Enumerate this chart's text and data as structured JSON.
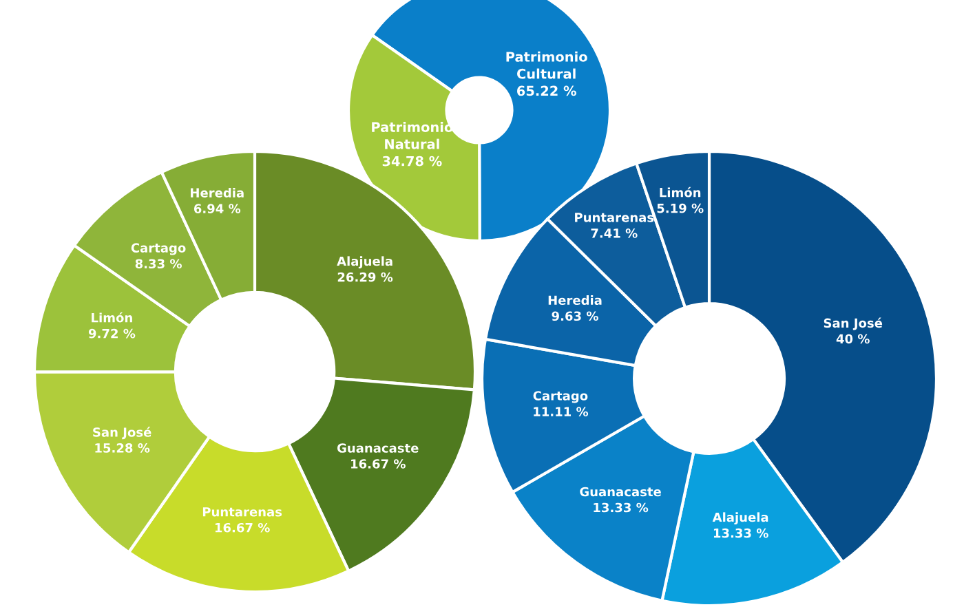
{
  "chart_data": [
    {
      "type": "donut",
      "categories": [
        "Patrimonio Cultural",
        "Patrimonio Natural"
      ],
      "values": [
        65.22,
        34.78
      ],
      "colors": [
        "#0a7fc9",
        "#a3c93a"
      ],
      "value_labels": [
        "65.22 %",
        "34.78 %"
      ]
    },
    {
      "type": "donut",
      "categories": [
        "Alajuela",
        "Guanacaste",
        "Puntarenas",
        "San José",
        "Limón",
        "Cartago",
        "Heredia"
      ],
      "values": [
        26.29,
        16.67,
        16.67,
        15.28,
        9.72,
        8.33,
        6.94
      ],
      "colors": [
        "#6a8c26",
        "#4f7a1f",
        "#c8dc2a",
        "#b0cd3b",
        "#9cc23b",
        "#8fb53a",
        "#86ad36"
      ],
      "value_labels": [
        "26.29 %",
        "16.67 %",
        "16.67 %",
        "15.28 %",
        "9.72 %",
        "8.33 %",
        "6.94 %"
      ]
    },
    {
      "type": "donut",
      "categories": [
        "San José",
        "Alajuela",
        "Guanacaste",
        "Cartago",
        "Heredia",
        "Puntarenas",
        "Limón"
      ],
      "values": [
        40,
        13.33,
        13.33,
        11.11,
        9.63,
        7.41,
        5.19
      ],
      "colors": [
        "#064e8a",
        "#0aa0de",
        "#0a82c8",
        "#0a6fb5",
        "#0b64a8",
        "#0d5d9c",
        "#0b5592"
      ],
      "value_labels": [
        "40 %",
        "13.33 %",
        "13.33 %",
        "11.11 %",
        "9.63 %",
        "7.41 %",
        "5.19 %"
      ]
    }
  ]
}
